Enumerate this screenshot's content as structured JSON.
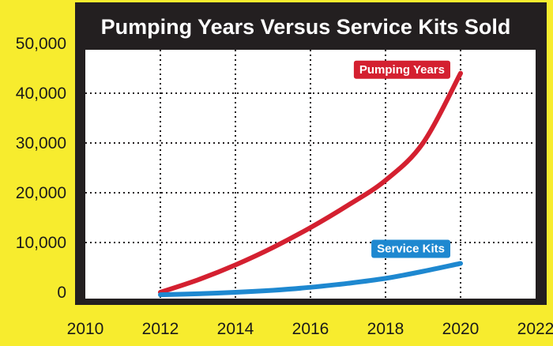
{
  "chart_data": {
    "type": "line",
    "title": "Pumping Years Versus Service Kits Sold",
    "xlabel": "",
    "ylabel": "",
    "xlim": [
      2010,
      2022
    ],
    "ylim": [
      0,
      50000
    ],
    "x_ticks": [
      "2010",
      "2012",
      "2014",
      "2016",
      "2018",
      "2020",
      "2022"
    ],
    "y_ticks": [
      "0",
      "10,000",
      "20,000",
      "30,000",
      "40,000",
      "50,000"
    ],
    "grid": "dotted",
    "series": [
      {
        "name": "Pumping Years",
        "color": "#D42030",
        "x": [
          2012,
          2013,
          2014,
          2015,
          2016,
          2017,
          2018,
          2019,
          2020
        ],
        "values": [
          0,
          2500,
          5500,
          9000,
          13000,
          17500,
          22500,
          30000,
          44000
        ]
      },
      {
        "name": "Service Kits",
        "color": "#1E88D0",
        "x": [
          2012,
          2013,
          2014,
          2015,
          2016,
          2017,
          2018,
          2019,
          2020
        ],
        "values": [
          -500,
          -300,
          0,
          400,
          1000,
          1800,
          2800,
          4200,
          5800
        ]
      }
    ],
    "colors": {
      "background": "#F7EC2E",
      "frame": "#231F20",
      "plot": "#FFFFFF"
    }
  }
}
